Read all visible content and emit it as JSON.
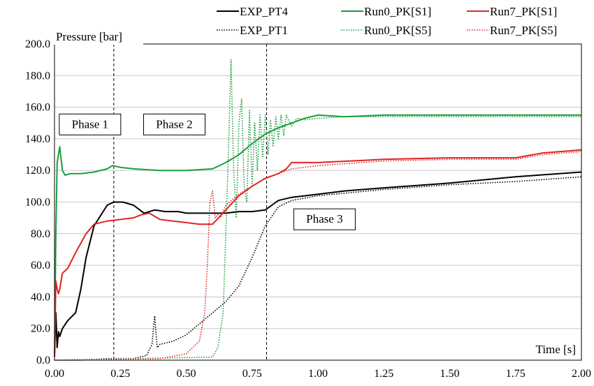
{
  "chart_data": {
    "type": "line",
    "ylabel": "Pressure [bar]",
    "xlabel": "Time [s]",
    "xlim": [
      0,
      2.0
    ],
    "ylim": [
      0,
      200
    ],
    "x_ticks": [
      "0.00",
      "0.25",
      "0.50",
      "0.75",
      "1.00",
      "1.25",
      "1.50",
      "1.75",
      "2.00"
    ],
    "y_ticks": [
      "0.0",
      "20.0",
      "40.0",
      "60.0",
      "80.0",
      "100.0",
      "120.0",
      "140.0",
      "160.0",
      "180.0",
      "200.0"
    ],
    "grid": "horizontal",
    "legend_position": "top",
    "phase_lines": [
      0.225,
      0.805
    ],
    "phases": [
      {
        "label": "Phase 1",
        "x": 0.05,
        "y": 146
      },
      {
        "label": "Phase 2",
        "x": 0.37,
        "y": 146
      },
      {
        "label": "Phase 3",
        "x": 0.94,
        "y": 86
      }
    ],
    "series": [
      {
        "name": "EXP_PT4",
        "color": "#000000",
        "style": "solid",
        "x": [
          0.0,
          0.005,
          0.01,
          0.015,
          0.02,
          0.03,
          0.05,
          0.08,
          0.1,
          0.12,
          0.15,
          0.2,
          0.225,
          0.26,
          0.3,
          0.34,
          0.38,
          0.42,
          0.47,
          0.5,
          0.55,
          0.6,
          0.65,
          0.7,
          0.75,
          0.8,
          0.825,
          0.85,
          0.9,
          1.0,
          1.1,
          1.25,
          1.5,
          1.75,
          2.0
        ],
        "y": [
          2,
          30,
          8,
          18,
          15,
          20,
          25,
          30,
          45,
          65,
          85,
          98,
          100,
          100,
          98,
          93,
          95,
          94,
          94,
          93,
          93,
          93,
          93,
          94,
          94,
          95,
          98,
          101,
          103,
          105,
          107,
          109,
          112,
          116,
          119
        ]
      },
      {
        "name": "EXP_PT1",
        "color": "#000000",
        "style": "dotted",
        "x": [
          0.0,
          0.1,
          0.2,
          0.3,
          0.35,
          0.37,
          0.38,
          0.39,
          0.4,
          0.45,
          0.5,
          0.55,
          0.6,
          0.65,
          0.7,
          0.75,
          0.8,
          0.85,
          0.9,
          1.0,
          1.25,
          1.5,
          1.75,
          2.0
        ],
        "y": [
          0,
          0,
          1,
          1,
          3,
          10,
          28,
          8,
          10,
          12,
          16,
          23,
          30,
          37,
          47,
          65,
          85,
          97,
          101,
          104,
          108,
          111,
          113,
          116
        ]
      },
      {
        "name": "Run0_PK[S1]",
        "color": "#1a9e3c",
        "style": "solid",
        "x": [
          0.0,
          0.005,
          0.01,
          0.02,
          0.03,
          0.04,
          0.06,
          0.1,
          0.15,
          0.2,
          0.22,
          0.25,
          0.3,
          0.4,
          0.5,
          0.6,
          0.65,
          0.7,
          0.75,
          0.8,
          0.85,
          0.9,
          0.95,
          1.0,
          1.1,
          1.25,
          1.5,
          1.75,
          2.0
        ],
        "y": [
          2,
          80,
          125,
          135,
          120,
          117,
          118,
          118,
          119,
          121,
          123,
          122,
          121,
          120,
          120,
          121,
          125,
          130,
          137,
          143,
          147,
          150,
          153,
          155,
          154,
          155,
          155,
          155,
          155
        ]
      },
      {
        "name": "Run0_PK[S5]",
        "color": "#1a9e3c",
        "style": "dotted",
        "x": [
          0.0,
          0.6,
          0.62,
          0.64,
          0.65,
          0.66,
          0.67,
          0.68,
          0.69,
          0.7,
          0.71,
          0.72,
          0.73,
          0.74,
          0.75,
          0.76,
          0.77,
          0.78,
          0.79,
          0.8,
          0.81,
          0.82,
          0.83,
          0.84,
          0.85,
          0.86,
          0.87,
          0.88,
          0.9,
          0.92,
          0.95,
          1.0,
          1.1,
          1.25,
          1.5,
          1.75,
          2.0
        ],
        "y": [
          0,
          2,
          8,
          30,
          80,
          130,
          190,
          120,
          90,
          150,
          165,
          110,
          100,
          158,
          110,
          150,
          120,
          155,
          128,
          155,
          130,
          152,
          135,
          154,
          140,
          155,
          142,
          155,
          148,
          153,
          152,
          153,
          154,
          154,
          154,
          154,
          154
        ]
      },
      {
        "name": "Run7_PK[S1]",
        "color": "#e02424",
        "style": "solid",
        "x": [
          0.0,
          0.005,
          0.01,
          0.015,
          0.02,
          0.03,
          0.05,
          0.08,
          0.1,
          0.12,
          0.15,
          0.2,
          0.25,
          0.3,
          0.33,
          0.36,
          0.4,
          0.45,
          0.5,
          0.55,
          0.6,
          0.65,
          0.7,
          0.75,
          0.8,
          0.85,
          0.88,
          0.9,
          1.0,
          1.25,
          1.5,
          1.75,
          1.85,
          2.0
        ],
        "y": [
          2,
          50,
          45,
          42,
          45,
          55,
          58,
          68,
          74,
          80,
          86,
          88,
          89,
          90,
          92,
          93,
          89,
          88,
          87,
          86,
          86,
          95,
          104,
          110,
          115,
          118,
          121,
          125,
          125,
          127,
          128,
          128,
          131,
          133
        ]
      },
      {
        "name": "Run7_PK[S5]",
        "color": "#e02424",
        "style": "dotted",
        "x": [
          0.0,
          0.4,
          0.5,
          0.55,
          0.57,
          0.58,
          0.59,
          0.6,
          0.61,
          0.62,
          0.63,
          0.65,
          0.7,
          0.75,
          0.8,
          0.85,
          0.9,
          1.0,
          1.25,
          1.5,
          1.75,
          1.85,
          2.0
        ],
        "y": [
          0,
          1,
          4,
          12,
          30,
          60,
          100,
          107,
          90,
          92,
          90,
          98,
          105,
          110,
          115,
          118,
          121,
          123,
          126,
          127,
          127,
          130,
          132
        ]
      }
    ]
  }
}
